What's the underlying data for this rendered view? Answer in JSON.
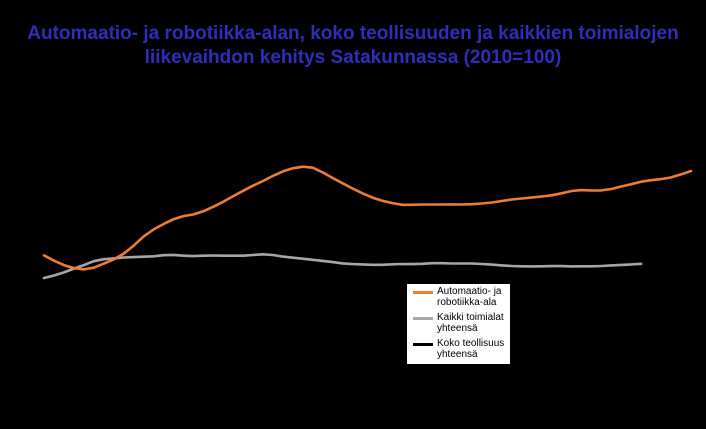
{
  "chart_data": {
    "type": "line",
    "title_lines": [
      "Automaatio- ja robotiikka-alan, koko teollisuuden ja kaikkien toimialojen",
      "liikevaihdon kehitys Satakunnassa (2010=100)"
    ],
    "xlabel": "",
    "ylabel": "",
    "grid": false,
    "legend_position": "bottom-right",
    "x": [
      0,
      1,
      2,
      3,
      4,
      5,
      6,
      7,
      8,
      9,
      10,
      11,
      12,
      13,
      14,
      15,
      16,
      17,
      18,
      19,
      20,
      21,
      22,
      23,
      24,
      25,
      26,
      27,
      28,
      29,
      30,
      31,
      32,
      33,
      34,
      35,
      36,
      37,
      38,
      39,
      40,
      41,
      42,
      43,
      44,
      45,
      46,
      47,
      48,
      49,
      50,
      51,
      52,
      53,
      54,
      55,
      56,
      57,
      58,
      59,
      60,
      61,
      62,
      63,
      64,
      65
    ],
    "xlim": [
      0,
      65
    ],
    "ylim": [
      0,
      100
    ],
    "series": [
      {
        "name": "Automaatio- ja robotiikka-ala",
        "color": "#ed7d31",
        "values": [
          18.6,
          15.1,
          12.3,
          10.3,
          9.5,
          10.6,
          13.2,
          16.0,
          19.7,
          24.9,
          30.8,
          35.4,
          38.9,
          42.0,
          44.1,
          45.1,
          47.2,
          50.1,
          53.4,
          57.0,
          60.5,
          63.8,
          66.9,
          70.2,
          73.1,
          75.1,
          76.2,
          75.5,
          72.5,
          68.8,
          65.4,
          62.0,
          58.9,
          56.1,
          54.0,
          52.5,
          51.4,
          51.4,
          51.6,
          51.6,
          51.6,
          51.7,
          51.6,
          51.8,
          52.3,
          52.9,
          53.9,
          54.9,
          55.5,
          56.1,
          56.8,
          57.6,
          58.9,
          60.4,
          61.0,
          60.7,
          60.8,
          61.7,
          63.3,
          64.8,
          66.4,
          67.4,
          68.1,
          69.2,
          71.2,
          73.4
        ]
      },
      {
        "name": "Kaikki toimialat yhteensä",
        "color": "#a6a6a6",
        "values": [
          3.9,
          5.5,
          7.5,
          10.0,
          12.3,
          14.8,
          16.1,
          16.6,
          17.2,
          17.5,
          17.7,
          18.0,
          18.7,
          18.9,
          18.4,
          18.1,
          18.4,
          18.5,
          18.4,
          18.4,
          18.4,
          18.8,
          19.3,
          18.8,
          17.8,
          17.1,
          16.4,
          15.7,
          15.0,
          14.2,
          13.4,
          12.9,
          12.7,
          12.5,
          12.5,
          12.8,
          13.0,
          12.9,
          13.1,
          13.5,
          13.5,
          13.3,
          13.3,
          13.3,
          13.0,
          12.6,
          12.1,
          11.7,
          11.5,
          11.4,
          11.5,
          11.6,
          11.6,
          11.4,
          11.5,
          11.5,
          11.7,
          12.1,
          12.4,
          12.7,
          13.1,
          null,
          null,
          null,
          null,
          null
        ]
      },
      {
        "name": "Koko teollisuus yhteensä",
        "color": "#000000",
        "values": [
          6.0,
          7.5,
          9.0,
          10.3,
          11.6,
          13.2,
          14.5,
          15.5,
          16.4,
          17.1,
          17.6,
          18.0,
          18.4,
          18.6,
          18.5,
          18.4,
          18.4,
          18.5,
          18.4,
          18.4,
          18.5,
          18.7,
          18.8,
          18.5,
          17.8,
          17.1,
          16.4,
          15.7,
          15.0,
          14.3,
          13.6,
          13.1,
          12.8,
          12.6,
          12.6,
          12.8,
          13.0,
          12.9,
          13.0,
          13.3,
          13.4,
          13.3,
          13.3,
          13.2,
          13.0,
          12.7,
          12.3,
          11.9,
          11.7,
          11.6,
          11.6,
          11.7,
          11.7,
          11.6,
          11.6,
          11.6,
          11.8,
          12.1,
          12.4,
          12.6,
          12.9,
          null,
          null,
          null,
          null,
          null
        ]
      }
    ]
  },
  "legend": {
    "items": [
      {
        "label_lines": [
          "Automaatio- ja",
          "robotiikka-ala"
        ],
        "color": "#ed7d31"
      },
      {
        "label_lines": [
          "Kaikki toimialat",
          "yhteensä"
        ],
        "color": "#a6a6a6"
      },
      {
        "label_lines": [
          "Koko teollisuus",
          "yhteensä"
        ],
        "color": "#000000"
      }
    ]
  }
}
